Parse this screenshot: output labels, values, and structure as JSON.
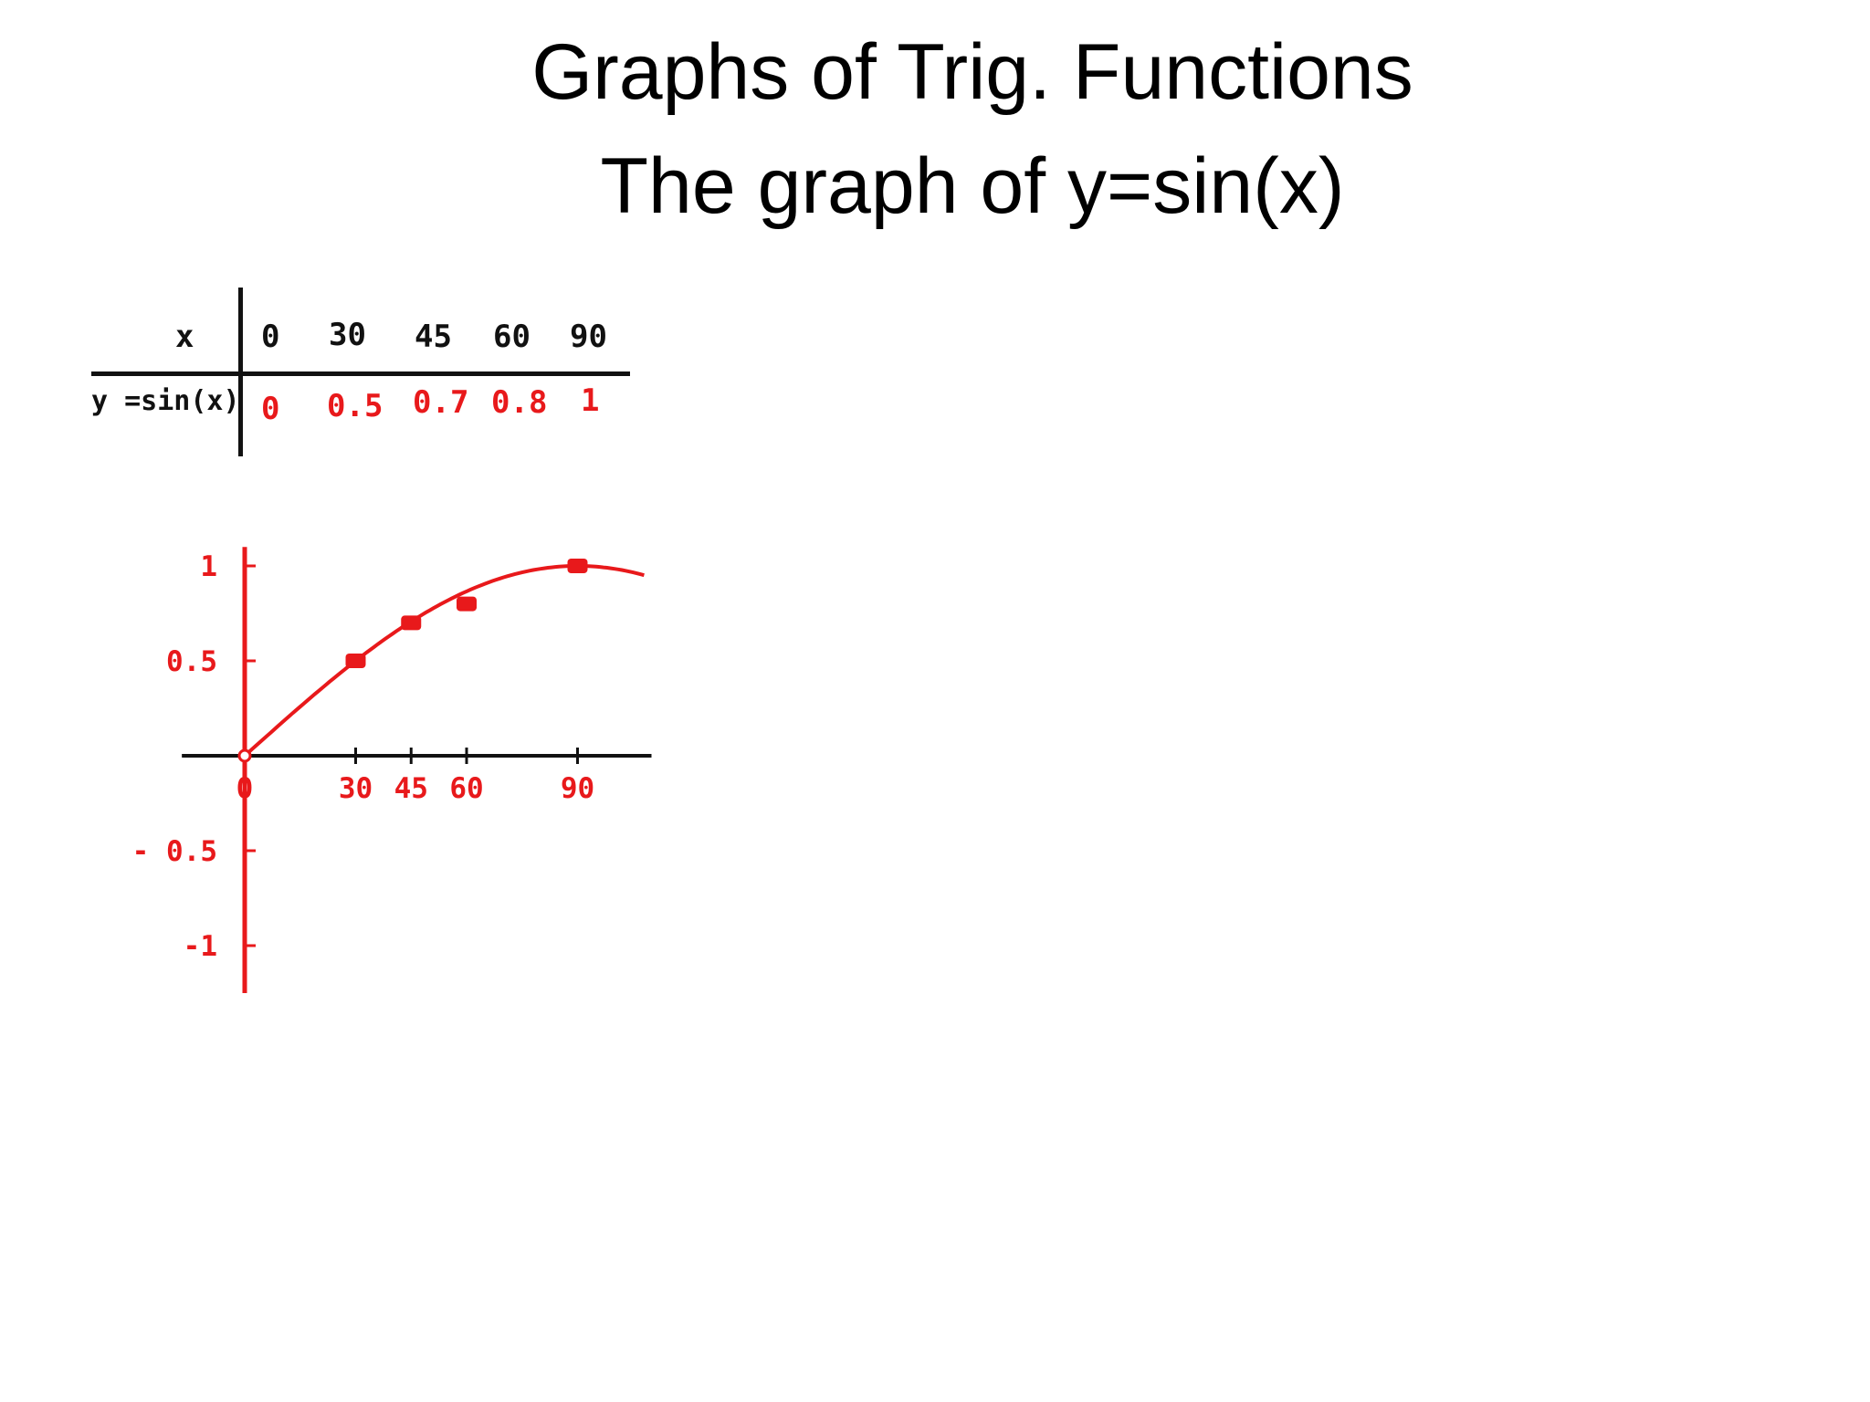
{
  "slide": {
    "title": "Graphs of Trig. Functions",
    "subtitle": "The graph of y=sin(x)"
  },
  "table": {
    "row_header_x": "x",
    "row_header_y": "y =sin(x)",
    "x_values": [
      "0",
      "30",
      "45",
      "60",
      "90"
    ],
    "y_values": [
      "0",
      "0.5",
      "0.7",
      "0.8",
      "1"
    ]
  },
  "chart_data": {
    "type": "line",
    "x": [
      0,
      30,
      45,
      60,
      90
    ],
    "series": [
      {
        "values": [
          0,
          0.5,
          0.7,
          0.8,
          1
        ]
      }
    ],
    "x_tick_labels": [
      "0",
      "30",
      "45",
      "60",
      "90"
    ],
    "y_ticks": [
      1,
      0.5,
      -0.5,
      -1
    ],
    "y_tick_labels": [
      "1",
      "0.5",
      "- 0.5",
      "-1"
    ],
    "xlim": [
      -17,
      110
    ],
    "ylim": [
      -1.25,
      1.1
    ],
    "grid": false,
    "color": "#e8191b",
    "axis_color": "#e8191b",
    "x_axis_color": "#111111"
  }
}
